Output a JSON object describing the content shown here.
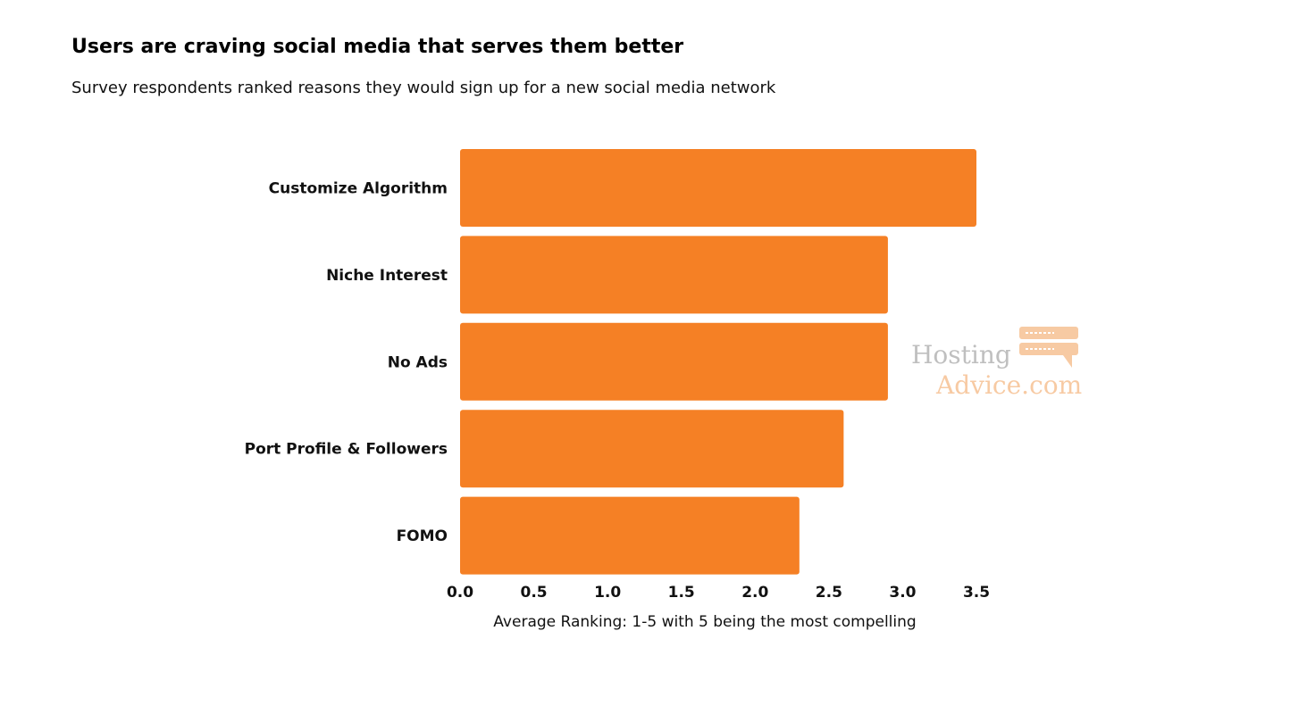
{
  "chart_data": {
    "type": "bar",
    "orientation": "horizontal",
    "title": "Users are craving social media that serves them better",
    "subtitle": "Survey respondents ranked reasons they would sign up for a new social media network",
    "categories": [
      "Customize Algorithm",
      "Niche Interest",
      "No Ads",
      "Port Profile & Followers",
      "FOMO"
    ],
    "values": [
      3.5,
      2.9,
      2.9,
      2.6,
      2.3
    ],
    "xlabel": "Average Ranking: 1-5 with 5 being the most compelling",
    "ylabel": "",
    "xlim": [
      0,
      3.5
    ],
    "xticks": [
      "0.0",
      "0.5",
      "1.0",
      "1.5",
      "2.0",
      "2.5",
      "3.0",
      "3.5"
    ],
    "grid": false,
    "legend": "none",
    "bar_color": "#f58025"
  },
  "watermark": {
    "line1": "Hosting",
    "line2": "Advice.com",
    "icon": "server-chat-icon",
    "color": "#f7c59a"
  }
}
